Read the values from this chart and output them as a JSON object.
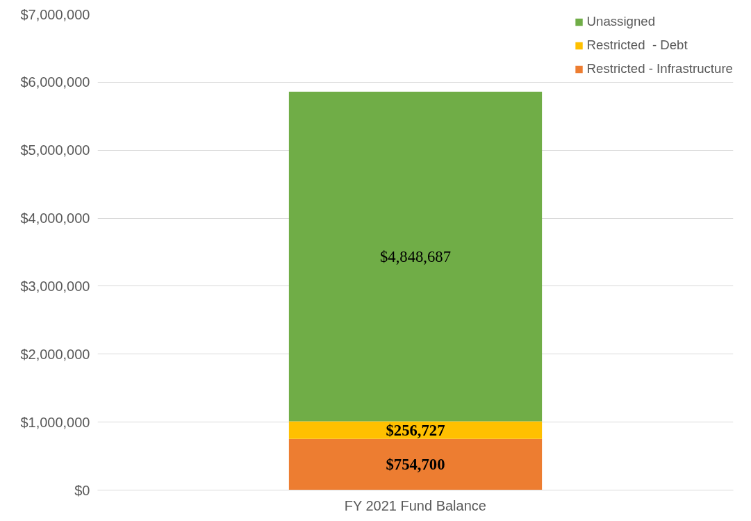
{
  "chart_data": {
    "type": "bar",
    "stacked": true,
    "categories": [
      "FY 2021 Fund Balance"
    ],
    "series": [
      {
        "name": "Restricted - Infrastructure",
        "color": "#ed7d31",
        "values": [
          754700
        ]
      },
      {
        "name": "Restricted  - Debt",
        "color": "#ffc000",
        "values": [
          256727
        ]
      },
      {
        "name": "Unassigned",
        "color": "#70ad47",
        "values": [
          4848687
        ]
      }
    ],
    "ylim": [
      0,
      7000000
    ],
    "yticks": [
      {
        "value": 0,
        "label": "$0"
      },
      {
        "value": 1000000,
        "label": "$1,000,000"
      },
      {
        "value": 2000000,
        "label": "$2,000,000"
      },
      {
        "value": 3000000,
        "label": "$3,000,000"
      },
      {
        "value": 4000000,
        "label": "$4,000,000"
      },
      {
        "value": 5000000,
        "label": "$5,000,000"
      },
      {
        "value": 6000000,
        "label": "$6,000,000"
      },
      {
        "value": 7000000,
        "label": "$7,000,000"
      }
    ],
    "value_labels": [
      [
        "$754,700"
      ],
      [
        "$256,727"
      ],
      [
        "$4,848,687"
      ]
    ],
    "grid": "y",
    "legend": "top right"
  }
}
